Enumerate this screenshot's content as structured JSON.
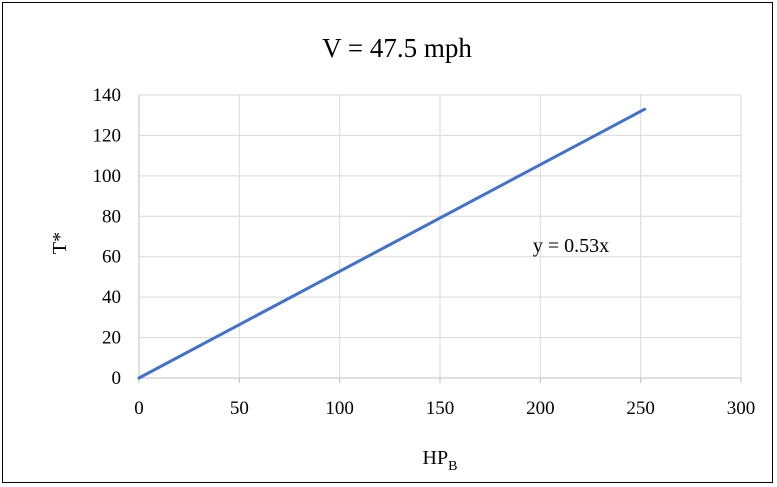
{
  "chart_data": {
    "type": "line",
    "title": "V = 47.5 mph",
    "xlabel": "HP",
    "xlabel_subscript": "B",
    "ylabel": "T*",
    "xlim": [
      0,
      300
    ],
    "ylim": [
      0,
      140
    ],
    "x_ticks": [
      "0",
      "50",
      "100",
      "150",
      "200",
      "250",
      "300"
    ],
    "y_ticks": [
      "0",
      "20",
      "40",
      "60",
      "80",
      "100",
      "120",
      "140"
    ],
    "grid": true,
    "legend": "none",
    "annotation": "y = 0.53x",
    "series": [
      {
        "color": "#4472C4",
        "x": [
          0,
          252
        ],
        "y": [
          0,
          133
        ]
      }
    ]
  }
}
